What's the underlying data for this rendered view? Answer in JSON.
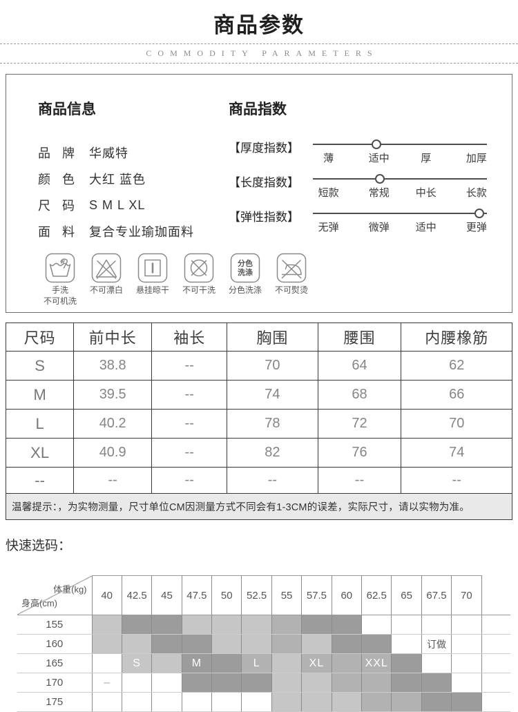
{
  "header": {
    "title": "商品参数",
    "subtitle": "COMMODITY PARAMETERS"
  },
  "info": {
    "title": "商品信息",
    "fields": [
      {
        "label": "品牌",
        "value": "华威特"
      },
      {
        "label": "颜色",
        "value": "大红 蓝色"
      },
      {
        "label": "尺码",
        "value": "S M L XL"
      },
      {
        "label": "面料",
        "value": "复合专业瑜珈面料"
      }
    ]
  },
  "index": {
    "title": "商品指数",
    "sliders": [
      {
        "label": "【厚度指数】",
        "options": [
          "薄",
          "适中",
          "厚",
          "加厚"
        ],
        "selected": "适中",
        "dot_percent": 37
      },
      {
        "label": "【长度指数】",
        "options": [
          "短款",
          "常规",
          "中长",
          "长款"
        ],
        "selected": "常规",
        "dot_percent": 39
      },
      {
        "label": "【弹性指数】",
        "options": [
          "无弹",
          "微弹",
          "适中",
          "更弹"
        ],
        "selected": "更弹",
        "dot_percent": 96
      }
    ],
    "option_percents": [
      9,
      38,
      65,
      94
    ]
  },
  "care": {
    "icons": [
      {
        "name": "hand-wash",
        "label": "手洗",
        "label2": "不可机洗"
      },
      {
        "name": "no-bleach",
        "label": "不可漂白"
      },
      {
        "name": "hang-dry",
        "label": "悬挂晾干"
      },
      {
        "name": "no-dry-clean",
        "label": "不可干洗"
      },
      {
        "name": "color-separate",
        "label": "分色洗涤",
        "glyph_text": [
          "分色",
          "洗涤"
        ]
      },
      {
        "name": "no-iron",
        "label": "不可熨烫"
      }
    ]
  },
  "size_table": {
    "headers": [
      "尺码",
      "前中长",
      "袖长",
      "胸围",
      "腰围",
      "内腰橡筋"
    ],
    "rows": [
      [
        "S",
        "38.8",
        "--",
        "70",
        "64",
        "62"
      ],
      [
        "M",
        "39.5",
        "--",
        "74",
        "68",
        "66"
      ],
      [
        "L",
        "40.2",
        "--",
        "78",
        "72",
        "70"
      ],
      [
        "XL",
        "40.9",
        "--",
        "82",
        "76",
        "74"
      ],
      [
        "--",
        "--",
        "--",
        "--",
        "--",
        "--"
      ]
    ],
    "tip": "温馨提示：，为实物测量，尺寸单位CM因测量方式不同会有1-3CM的误差，实际尺寸，请以实物为准。"
  },
  "quick_pick": {
    "title": "快速选码：",
    "weight_label": "体重(kg)",
    "height_label": "身高(cm)",
    "columns": [
      "40",
      "42.5",
      "45",
      "47.5",
      "50",
      "52.5",
      "55",
      "57.5",
      "60",
      "62.5",
      "65",
      "67.5",
      "70"
    ],
    "rows": [
      {
        "label": "155",
        "cells": [
          {
            "s": 1
          },
          {
            "s": 3
          },
          {
            "s": 3
          },
          {
            "s": 1
          },
          {
            "s": 1
          },
          {
            "s": 1
          },
          {
            "s": 2
          },
          {
            "s": 3
          },
          {
            "s": 3
          },
          {
            "s": 0
          },
          {
            "s": 0
          },
          {
            "s": 0
          },
          {
            "s": 0
          }
        ]
      },
      {
        "label": "160",
        "cells": [
          {
            "s": 1
          },
          {
            "s": 1
          },
          {
            "s": 3
          },
          {
            "s": 3
          },
          {
            "s": 1
          },
          {
            "s": 1
          },
          {
            "s": 2
          },
          {
            "s": 1
          },
          {
            "s": 3
          },
          {
            "s": 3
          },
          {
            "s": 0
          },
          {
            "s": 0,
            "t": "订做"
          },
          {
            "s": 0
          }
        ]
      },
      {
        "label": "165",
        "cells": [
          {
            "s": 0
          },
          {
            "s": 1,
            "t": "S"
          },
          {
            "s": 1
          },
          {
            "s": 3,
            "t": "M"
          },
          {
            "s": 3
          },
          {
            "s": 2,
            "t": "L"
          },
          {
            "s": 1
          },
          {
            "s": 2,
            "t": "XL"
          },
          {
            "s": 2
          },
          {
            "s": 2,
            "t": "XXL"
          },
          {
            "s": 3
          },
          {
            "s": 0
          },
          {
            "s": 0
          }
        ]
      },
      {
        "label": "170",
        "cells": [
          {
            "s": 0,
            "t": "–"
          },
          {
            "s": 0
          },
          {
            "s": 0
          },
          {
            "s": 3
          },
          {
            "s": 3
          },
          {
            "s": 3
          },
          {
            "s": 1
          },
          {
            "s": 1
          },
          {
            "s": 2
          },
          {
            "s": 2
          },
          {
            "s": 3
          },
          {
            "s": 3
          },
          {
            "s": 0
          }
        ]
      },
      {
        "label": "175",
        "cells": [
          {
            "s": 0
          },
          {
            "s": 0
          },
          {
            "s": 0
          },
          {
            "s": 0
          },
          {
            "s": 0
          },
          {
            "s": 0
          },
          {
            "s": 1
          },
          {
            "s": 1
          },
          {
            "s": 1
          },
          {
            "s": 2
          },
          {
            "s": 2
          },
          {
            "s": 3
          },
          {
            "s": 3
          }
        ]
      }
    ],
    "shades": {
      "0": "#ffffff",
      "1": "#c6c6c6",
      "2": "#b2b2b2",
      "3": "#9c9c9c"
    }
  },
  "colors": {
    "border_dark": "#3a3a3a",
    "tip_bg": "#e9e9e9",
    "slider_line": "#4d4d4d"
  }
}
